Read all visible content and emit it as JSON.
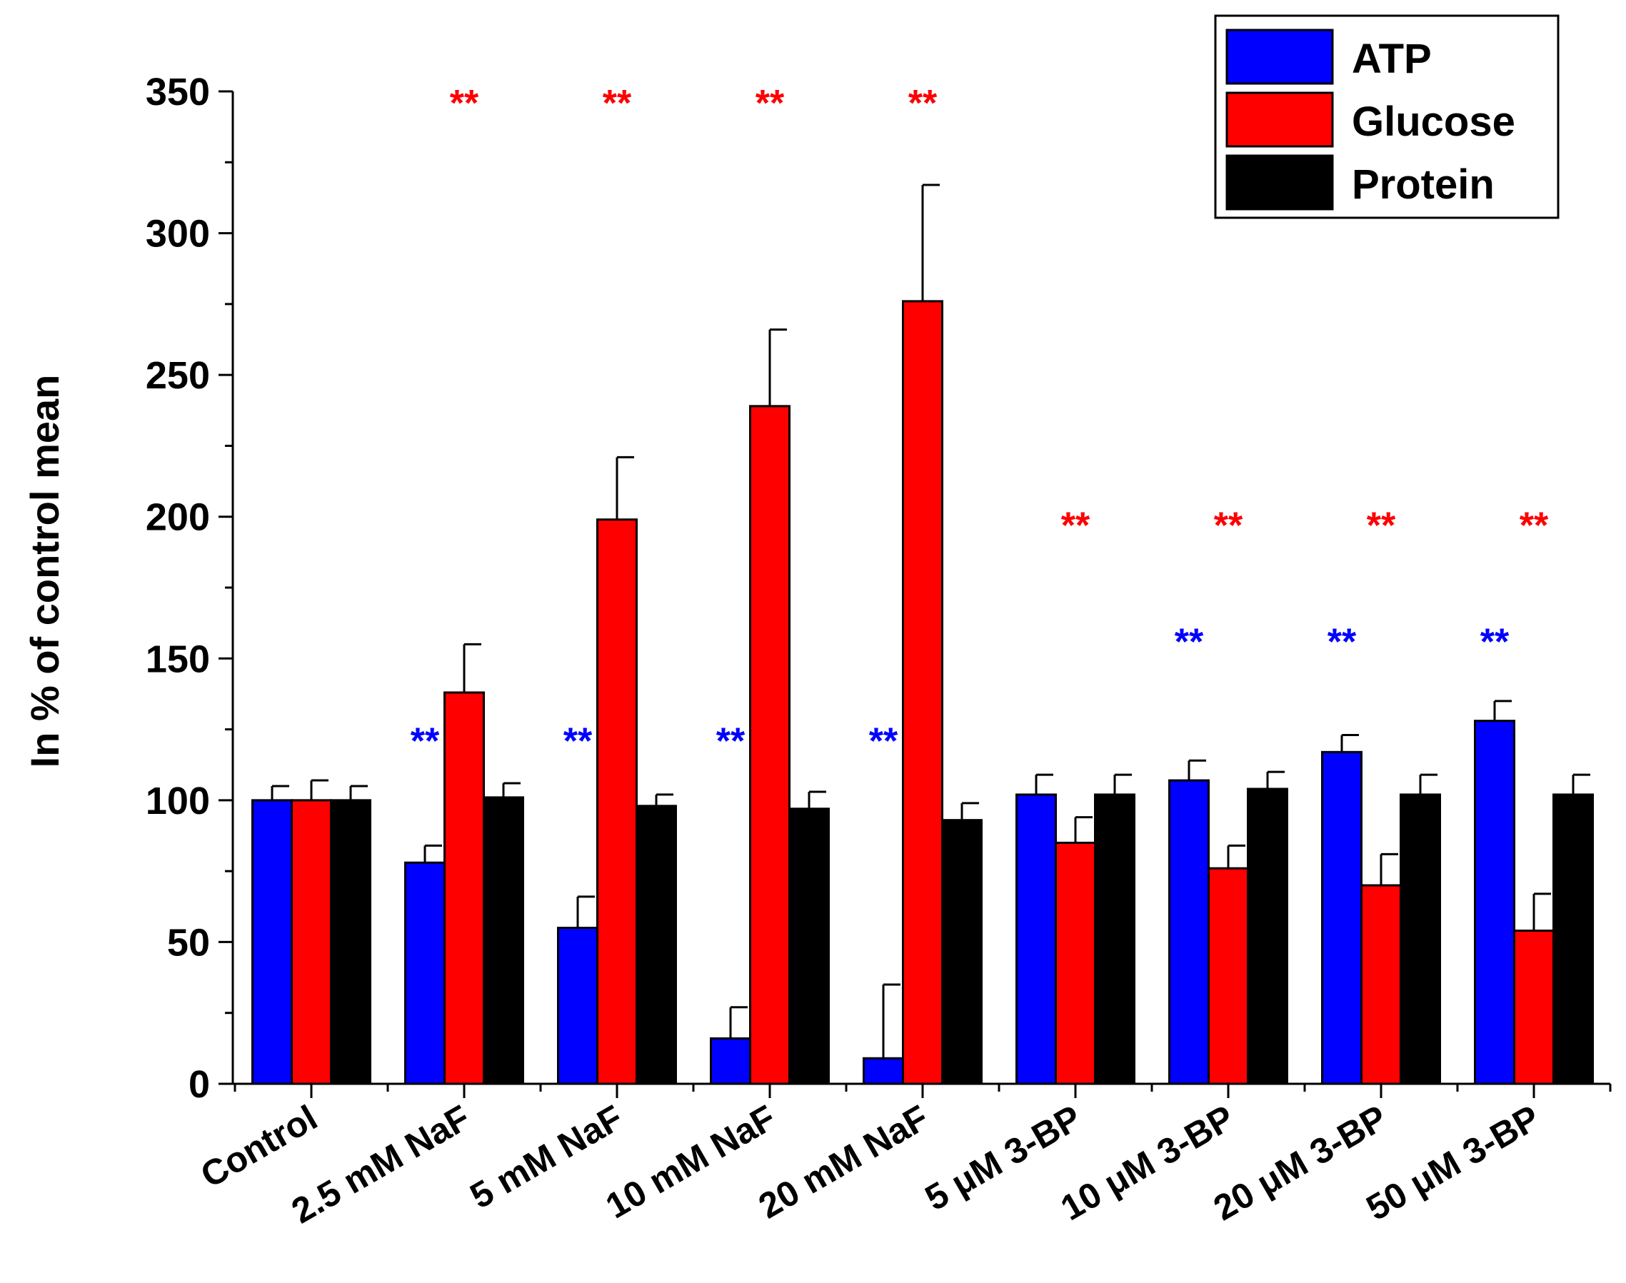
{
  "chart_data": {
    "type": "bar",
    "ylabel": "In % of control mean",
    "xlabel": "",
    "ylim": [
      0,
      350
    ],
    "yticks": [
      0,
      50,
      100,
      150,
      200,
      250,
      300,
      350
    ],
    "categories": [
      "Control",
      "2.5 mM NaF",
      "5 mM NaF",
      "10 mM NaF",
      "20 mM NaF",
      "5 μM 3-BP",
      "10 μM 3-BP",
      "20 μM 3-BP",
      "50 μM 3-BP"
    ],
    "series": [
      {
        "name": "ATP",
        "color": "#0000ff",
        "values": [
          100,
          78,
          55,
          16,
          9,
          102,
          107,
          117,
          128
        ],
        "errors": [
          5,
          6,
          11,
          11,
          26,
          7,
          7,
          6,
          7
        ]
      },
      {
        "name": "Glucose",
        "color": "#ff0000",
        "values": [
          100,
          138,
          199,
          239,
          276,
          85,
          76,
          70,
          54
        ],
        "errors": [
          7,
          17,
          22,
          27,
          41,
          9,
          8,
          11,
          13
        ]
      },
      {
        "name": "Protein",
        "color": "#000000",
        "values": [
          100,
          101,
          98,
          97,
          93,
          102,
          104,
          102,
          102
        ],
        "errors": [
          5,
          5,
          4,
          6,
          6,
          7,
          6,
          7,
          7
        ]
      }
    ],
    "significance": [
      {
        "series": "Glucose",
        "category": "2.5 mM NaF",
        "label": "**",
        "y": 348,
        "color": "#ff0000"
      },
      {
        "series": "Glucose",
        "category": "5 mM NaF",
        "label": "**",
        "y": 348,
        "color": "#ff0000"
      },
      {
        "series": "Glucose",
        "category": "10 mM NaF",
        "label": "**",
        "y": 348,
        "color": "#ff0000"
      },
      {
        "series": "Glucose",
        "category": "20 mM NaF",
        "label": "**",
        "y": 348,
        "color": "#ff0000"
      },
      {
        "series": "Glucose",
        "category": "5 μM 3-BP",
        "label": "**",
        "y": 199,
        "color": "#ff0000"
      },
      {
        "series": "Glucose",
        "category": "10 μM 3-BP",
        "label": "**",
        "y": 199,
        "color": "#ff0000"
      },
      {
        "series": "Glucose",
        "category": "20 μM 3-BP",
        "label": "**",
        "y": 199,
        "color": "#ff0000"
      },
      {
        "series": "Glucose",
        "category": "50 μM 3-BP",
        "label": "**",
        "y": 199,
        "color": "#ff0000"
      },
      {
        "series": "ATP",
        "category": "2.5 mM NaF",
        "label": "**",
        "y": 123,
        "color": "#0000ff"
      },
      {
        "series": "ATP",
        "category": "5 mM NaF",
        "label": "**",
        "y": 123,
        "color": "#0000ff"
      },
      {
        "series": "ATP",
        "category": "10 mM NaF",
        "label": "**",
        "y": 123,
        "color": "#0000ff"
      },
      {
        "series": "ATP",
        "category": "20 mM NaF",
        "label": "**",
        "y": 123,
        "color": "#0000ff"
      },
      {
        "series": "ATP",
        "category": "10 μM 3-BP",
        "label": "**",
        "y": 158,
        "color": "#0000ff"
      },
      {
        "series": "ATP",
        "category": "20 μM 3-BP",
        "label": "**",
        "y": 158,
        "color": "#0000ff"
      },
      {
        "series": "ATP",
        "category": "50 μM 3-BP",
        "label": "**",
        "y": 158,
        "color": "#0000ff"
      }
    ],
    "legend": {
      "placement": "top-right",
      "entries": [
        "ATP",
        "Glucose",
        "Protein"
      ]
    },
    "grid": false
  }
}
